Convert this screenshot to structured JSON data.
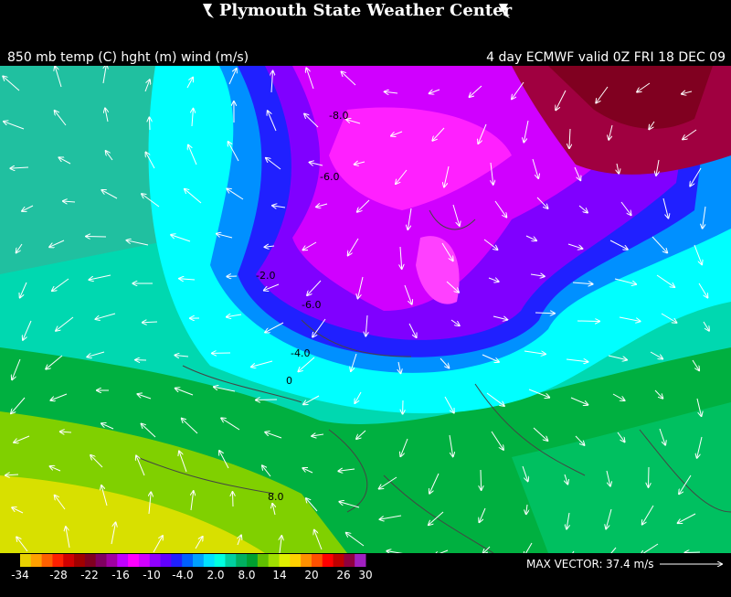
{
  "header": {
    "title": "Plymouth State Weather Center",
    "left": "850 mb temp (C) hght (m) wind (m/s)",
    "right": "4 day ECMWF valid 0Z FRI 18 DEC 09"
  },
  "contour_labels": [
    "-8.0",
    "-6.0",
    "-2.0",
    "-6.0",
    "-4.0",
    "0",
    "8.0"
  ],
  "colorbar": {
    "ticks": [
      "-34",
      "-28",
      "-22",
      "-16",
      "-10",
      "-4.0",
      "2.0",
      "8.0",
      "14",
      "20",
      "26",
      "30"
    ]
  },
  "max_vector": {
    "label": "MAX VECTOR:",
    "value": "37.4 m/s"
  }
}
